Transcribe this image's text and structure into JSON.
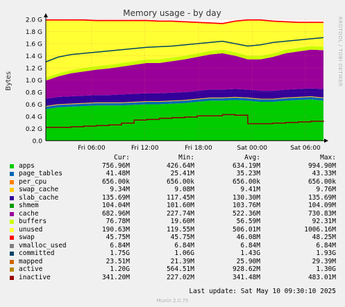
{
  "chart_data": {
    "type": "area",
    "title": "Memory usage - by day",
    "ylabel": "Bytes",
    "ylim": [
      0,
      2.0
    ],
    "y_unit": "G",
    "yticks": [
      "0.0",
      "0.2 G",
      "0.4 G",
      "0.6 G",
      "0.8 G",
      "1.0 G",
      "1.2 G",
      "1.4 G",
      "1.6 G",
      "1.8 G",
      "2.0 G"
    ],
    "xticks": [
      "Fri 06:00",
      "Fri 12:00",
      "Fri 18:00",
      "Sat 00:00",
      "Sat 06:00"
    ],
    "grid": true,
    "stack_order": [
      "apps",
      "page_tables",
      "per_cpu",
      "swap_cache",
      "slab_cache",
      "cache",
      "buffers",
      "unused",
      "swap"
    ],
    "series": [
      {
        "name": "apps",
        "color": "#00cc00",
        "values": [
          0.52,
          0.55,
          0.56,
          0.57,
          0.58,
          0.58,
          0.58,
          0.59,
          0.6,
          0.6,
          0.61,
          0.62,
          0.64,
          0.66,
          0.66,
          0.67,
          0.66,
          0.64,
          0.64,
          0.66,
          0.67,
          0.68,
          0.66
        ]
      },
      {
        "name": "page_tables",
        "color": "#0066b3",
        "values": [
          0.04,
          0.04,
          0.04,
          0.04,
          0.04,
          0.04,
          0.04,
          0.04,
          0.04,
          0.04,
          0.04,
          0.04,
          0.04,
          0.04,
          0.04,
          0.04,
          0.04,
          0.04,
          0.04,
          0.04,
          0.04,
          0.04,
          0.04
        ]
      },
      {
        "name": "per_cpu",
        "color": "#ff8000",
        "values": [
          0.001,
          0.001,
          0.001,
          0.001,
          0.001,
          0.001,
          0.001,
          0.001,
          0.001,
          0.001,
          0.001,
          0.001,
          0.001,
          0.001,
          0.001,
          0.001,
          0.001,
          0.001,
          0.001,
          0.001,
          0.001,
          0.001,
          0.001
        ]
      },
      {
        "name": "swap_cache",
        "color": "#ffcc00",
        "values": [
          0.01,
          0.01,
          0.01,
          0.01,
          0.01,
          0.01,
          0.01,
          0.01,
          0.01,
          0.01,
          0.01,
          0.01,
          0.01,
          0.01,
          0.01,
          0.01,
          0.01,
          0.01,
          0.01,
          0.01,
          0.01,
          0.01,
          0.01
        ]
      },
      {
        "name": "slab_cache",
        "color": "#330099",
        "values": [
          0.12,
          0.12,
          0.12,
          0.12,
          0.12,
          0.12,
          0.13,
          0.13,
          0.13,
          0.13,
          0.13,
          0.13,
          0.13,
          0.13,
          0.13,
          0.13,
          0.13,
          0.13,
          0.13,
          0.13,
          0.13,
          0.13,
          0.14
        ]
      },
      {
        "name": "cache",
        "color": "#990099",
        "values": [
          0.3,
          0.34,
          0.38,
          0.4,
          0.42,
          0.44,
          0.46,
          0.48,
          0.5,
          0.5,
          0.52,
          0.54,
          0.56,
          0.58,
          0.6,
          0.55,
          0.5,
          0.52,
          0.56,
          0.6,
          0.62,
          0.64,
          0.64
        ]
      },
      {
        "name": "buffers",
        "color": "#ccff00",
        "values": [
          0.05,
          0.05,
          0.05,
          0.06,
          0.06,
          0.06,
          0.06,
          0.06,
          0.06,
          0.06,
          0.06,
          0.06,
          0.06,
          0.06,
          0.06,
          0.06,
          0.06,
          0.06,
          0.06,
          0.06,
          0.06,
          0.06,
          0.06
        ]
      },
      {
        "name": "unused",
        "color": "#ffff33",
        "values": [
          0.94,
          0.87,
          0.82,
          0.78,
          0.74,
          0.72,
          0.69,
          0.66,
          0.63,
          0.62,
          0.59,
          0.55,
          0.5,
          0.45,
          0.42,
          0.5,
          0.58,
          0.58,
          0.52,
          0.45,
          0.41,
          0.38,
          0.39
        ]
      },
      {
        "name": "swap",
        "color": "#ff0000",
        "values": [
          0.02,
          0.02,
          0.02,
          0.02,
          0.02,
          0.02,
          0.02,
          0.02,
          0.02,
          0.02,
          0.02,
          0.02,
          0.02,
          0.02,
          0.02,
          0.02,
          0.02,
          0.02,
          0.02,
          0.02,
          0.02,
          0.02,
          0.02
        ]
      }
    ],
    "committed_line": {
      "name": "committed",
      "color": "#004466",
      "values": [
        1.3,
        1.38,
        1.42,
        1.44,
        1.46,
        1.48,
        1.5,
        1.52,
        1.54,
        1.55,
        1.56,
        1.58,
        1.6,
        1.62,
        1.64,
        1.6,
        1.56,
        1.58,
        1.62,
        1.64,
        1.66,
        1.68,
        1.7
      ]
    },
    "inactive_line": {
      "name": "inactive",
      "color": "#8b0000",
      "values": [
        0.22,
        0.22,
        0.23,
        0.24,
        0.25,
        0.26,
        0.29,
        0.34,
        0.35,
        0.37,
        0.38,
        0.39,
        0.41,
        0.41,
        0.43,
        0.42,
        0.28,
        0.28,
        0.29,
        0.3,
        0.31,
        0.32,
        0.33
      ]
    }
  },
  "legend": {
    "headers": [
      "Cur:",
      "Min:",
      "Avg:",
      "Max:"
    ],
    "rows": [
      {
        "name": "apps",
        "color": "#00cc00",
        "cur": "756.96M",
        "min": "426.64M",
        "avg": "634.19M",
        "max": "994.90M"
      },
      {
        "name": "page_tables",
        "color": "#0066b3",
        "cur": "41.48M",
        "min": "25.41M",
        "avg": "35.23M",
        "max": "43.33M"
      },
      {
        "name": "per_cpu",
        "color": "#ff8000",
        "cur": "656.00k",
        "min": "656.00k",
        "avg": "656.00k",
        "max": "656.00k"
      },
      {
        "name": "swap_cache",
        "color": "#ffcc00",
        "cur": "9.34M",
        "min": "9.08M",
        "avg": "9.41M",
        "max": "9.76M"
      },
      {
        "name": "slab_cache",
        "color": "#330099",
        "cur": "135.69M",
        "min": "117.45M",
        "avg": "130.30M",
        "max": "135.69M"
      },
      {
        "name": "shmem",
        "color": "#009900",
        "cur": "104.04M",
        "min": "101.60M",
        "avg": "103.76M",
        "max": "104.09M"
      },
      {
        "name": "cache",
        "color": "#990099",
        "cur": "682.96M",
        "min": "227.74M",
        "avg": "522.36M",
        "max": "730.83M"
      },
      {
        "name": "buffers",
        "color": "#ccff00",
        "cur": "76.78M",
        "min": "19.60M",
        "avg": "56.59M",
        "max": "92.31M"
      },
      {
        "name": "unused",
        "color": "#ffff33",
        "cur": "190.63M",
        "min": "119.55M",
        "avg": "506.01M",
        "max": "1006.16M"
      },
      {
        "name": "swap",
        "color": "#ff0000",
        "cur": "45.75M",
        "min": "45.75M",
        "avg": "46.08M",
        "max": "48.25M"
      },
      {
        "name": "vmalloc_used",
        "color": "#808080",
        "cur": "6.84M",
        "min": "6.84M",
        "avg": "6.84M",
        "max": "6.84M"
      },
      {
        "name": "committed",
        "color": "#004466",
        "cur": "1.75G",
        "min": "1.06G",
        "avg": "1.43G",
        "max": "1.93G"
      },
      {
        "name": "mapped",
        "color": "#cc6600",
        "cur": "23.51M",
        "min": "21.39M",
        "avg": "25.90M",
        "max": "29.39M"
      },
      {
        "name": "active",
        "color": "#b88a00",
        "cur": "1.20G",
        "min": "564.51M",
        "avg": "928.62M",
        "max": "1.30G"
      },
      {
        "name": "inactive",
        "color": "#990000",
        "cur": "341.20M",
        "min": "227.02M",
        "avg": "341.48M",
        "max": "483.01M"
      }
    ]
  },
  "last_update": "Last update:  Sat May 10 09:30:10 2025",
  "footer": "Munin 2.0.75",
  "watermark": "RRDTOOL / TOBI OETIKER"
}
